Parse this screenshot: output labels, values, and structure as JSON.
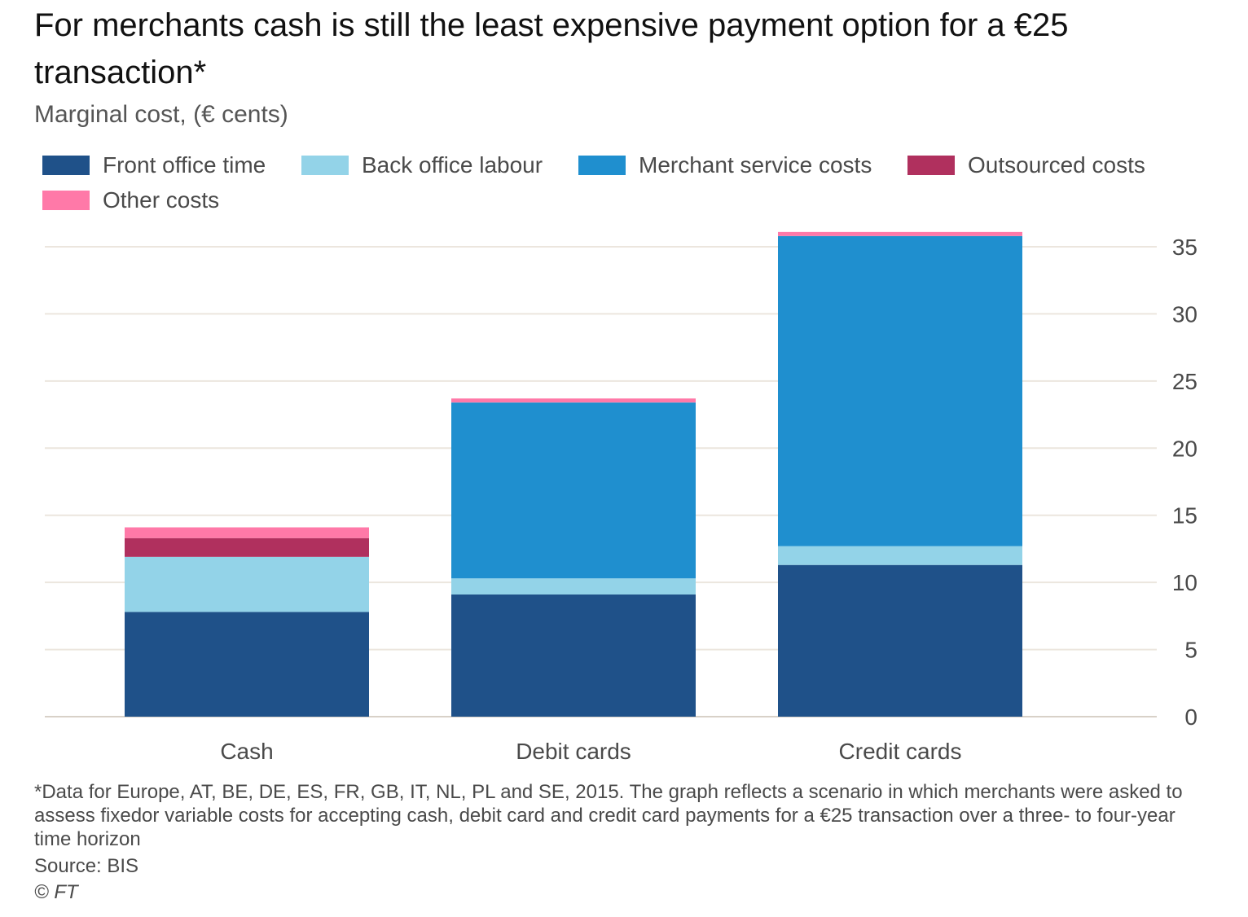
{
  "header": {
    "title": "For merchants cash is still the least expensive payment option for a €25 transaction*",
    "subtitle": "Marginal cost, (€ cents)"
  },
  "footer": {
    "footnote": "*Data for Europe, AT, BE, DE, ES, FR, GB, IT, NL, PL and SE, 2015. The graph reflects a scenario in which merchants were asked to assess fixedor variable costs for accepting cash, debit card and credit card payments for a €25 transaction over a three- to four-year time horizon",
    "source": "Source: BIS",
    "credit": "© FT"
  },
  "chart_data": {
    "type": "bar",
    "stacked": true,
    "categories": [
      "Cash",
      "Debit cards",
      "Credit cards"
    ],
    "series": [
      {
        "name": "Front office time",
        "color": "#1f5189",
        "values": [
          7.8,
          9.1,
          11.3
        ]
      },
      {
        "name": "Back office labour",
        "color": "#93d3e8",
        "values": [
          4.1,
          1.2,
          1.4
        ]
      },
      {
        "name": "Merchant service costs",
        "color": "#1f8fcf",
        "values": [
          0,
          13.1,
          23.1
        ]
      },
      {
        "name": "Outsourced costs",
        "color": "#b0305e",
        "values": [
          1.4,
          0,
          0
        ]
      },
      {
        "name": "Other costs",
        "color": "#ff79a8",
        "values": [
          0.8,
          0.3,
          0.3
        ]
      }
    ],
    "title": "For merchants cash is still the least expensive payment option for a €25 transaction*",
    "xlabel": "",
    "ylabel": "Marginal cost, (€ cents)",
    "ylim": [
      0,
      35
    ],
    "yticks": [
      0,
      5,
      10,
      15,
      20,
      25,
      30,
      35
    ],
    "y_axis_side": "right",
    "grid": true,
    "legend_position": "top-left"
  }
}
